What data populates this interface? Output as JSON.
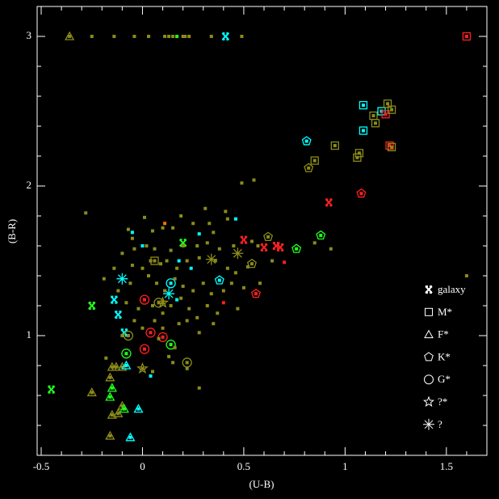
{
  "chart_data": {
    "type": "scatter",
    "x_label": "(U-B)",
    "y_label": "(B-R)",
    "xlim": [
      -0.52,
      1.7
    ],
    "ylim": [
      0.2,
      3.2
    ],
    "xticks": [
      -0.5,
      0,
      0.5,
      1,
      1.5
    ],
    "yticks": [
      1,
      2,
      3
    ],
    "xminorticks": [
      -0.4,
      -0.3,
      -0.2,
      -0.1,
      0.1,
      0.2,
      0.3,
      0.4,
      0.6,
      0.7,
      0.8,
      0.9,
      1.1,
      1.2,
      1.3,
      1.4,
      1.6
    ],
    "yminorticks": [
      0.4,
      0.6,
      0.8,
      1.2,
      1.4,
      1.6,
      1.8,
      2.2,
      2.4,
      2.6,
      2.8
    ],
    "legend": "lower right",
    "series": [
      {
        "name": "galaxy",
        "marker": "galaxy",
        "x": [
          -0.45,
          -0.25,
          -0.14,
          -0.12,
          -0.09,
          0.2,
          0.41,
          0.5,
          0.6,
          0.66,
          0.92,
          0.68
        ],
        "values": [
          0.64,
          1.2,
          1.24,
          1.14,
          1.02,
          1.62,
          3.0,
          1.64,
          1.59,
          1.6,
          1.89,
          1.59
        ],
        "colors": [
          "#20ff20",
          "#20ff20",
          "#00ffff",
          "#00ffff",
          "#00ffff",
          "#20ff20",
          "#00ffff",
          "#ff2020",
          "#ff2020",
          "#ff2020",
          "#ff2020",
          "#ff2020"
        ]
      },
      {
        "name": "M*",
        "marker": "square",
        "x": [
          1.09,
          1.09,
          1.15,
          1.14,
          1.18,
          1.2,
          1.21,
          1.23,
          1.22,
          1.23,
          1.06,
          1.07,
          0.95,
          0.85,
          0.06,
          1.6
        ],
        "values": [
          2.54,
          2.37,
          2.42,
          2.47,
          2.5,
          2.48,
          2.55,
          2.51,
          2.27,
          2.26,
          2.19,
          2.22,
          2.27,
          2.17,
          1.5,
          3.0
        ],
        "colors": [
          "#00ffff",
          "#00ffff",
          "#8b8b1a",
          "#8b8b1a",
          "#00ffff",
          "#ff2020",
          "#8b8b1a",
          "#8b8b1a",
          "#ff2020",
          "#8b8b1a",
          "#8b8b1a",
          "#8b8b1a",
          "#8b8b1a",
          "#8b8b1a",
          "#8b8b1a",
          "#ff2020"
        ]
      },
      {
        "name": "F*",
        "marker": "triangle",
        "x": [
          -0.36,
          -0.25,
          -0.16,
          -0.15,
          -0.13,
          -0.1,
          -0.08,
          -0.15,
          -0.16,
          -0.15,
          -0.12,
          -0.1,
          -0.09,
          -0.02,
          -0.16,
          -0.06
        ],
        "values": [
          3.0,
          0.62,
          0.72,
          0.79,
          0.79,
          0.79,
          0.8,
          0.65,
          0.59,
          0.47,
          0.48,
          0.53,
          0.51,
          0.51,
          0.33,
          0.32
        ],
        "colors": [
          "#8b8b1a",
          "#8b8b1a",
          "#8b8b1a",
          "#8b8b1a",
          "#8b8b1a",
          "#8b8b1a",
          "#00ffff",
          "#20ff20",
          "#20ff20",
          "#8b8b1a",
          "#8b8b1a",
          "#8b8b1a",
          "#20ff20",
          "#00ffff",
          "#8b8b1a",
          "#00ffff"
        ]
      },
      {
        "name": "K*",
        "marker": "pentagon",
        "x": [
          0.81,
          0.82,
          1.08,
          0.62,
          0.88,
          0.76,
          0.54,
          0.56,
          0.38
        ],
        "values": [
          2.3,
          2.12,
          1.95,
          1.66,
          1.67,
          1.58,
          1.48,
          1.28,
          1.37
        ],
        "colors": [
          "#00ffff",
          "#8b8b1a",
          "#ff2020",
          "#8b8b1a",
          "#20ff20",
          "#20ff20",
          "#8b8b1a",
          "#ff2020",
          "#00ffff"
        ]
      },
      {
        "name": "G*",
        "marker": "circle",
        "x": [
          0.01,
          -0.07,
          0.04,
          0.1,
          0.01,
          -0.08,
          0.14,
          0.22,
          0.08,
          0.14
        ],
        "values": [
          1.24,
          1.0,
          1.02,
          0.99,
          0.91,
          0.88,
          0.94,
          0.82,
          1.22,
          1.35
        ],
        "colors": [
          "#ff2020",
          "#8b8b1a",
          "#ff2020",
          "#ff2020",
          "#ff2020",
          "#20ff20",
          "#20ff20",
          "#8b8b1a",
          "#8b8b1a",
          "#00ffff"
        ]
      },
      {
        "name": "?*",
        "marker": "star",
        "x": [
          0.0,
          0.1
        ],
        "values": [
          0.78,
          1.22
        ],
        "colors": [
          "#8b8b1a",
          "#8b8b1a"
        ]
      },
      {
        "name": "?",
        "marker": "asterisk",
        "x": [
          -0.1,
          0.13,
          0.34,
          0.47
        ],
        "values": [
          1.38,
          1.28,
          1.51,
          1.55
        ],
        "colors": [
          "#00ffff",
          "#00ffff",
          "#8b8b1a",
          "#8b8b1a"
        ]
      },
      {
        "marker": "dot",
        "x": [
          -0.25,
          -0.14,
          -0.04,
          0.03,
          0.11,
          0.13,
          0.15,
          0.2,
          0.21,
          0.23,
          0.34,
          0.49,
          0.17,
          -0.28,
          0.01,
          0.19,
          0.41,
          0.49,
          0.55,
          -0.07,
          -0.05,
          0.05,
          0.1,
          0.15,
          0.25,
          0.33,
          0.42,
          0.35,
          -0.1,
          -0.04,
          0.02,
          0.06,
          0.14,
          0.2,
          0.27,
          0.32,
          0.38,
          0.45,
          0.54,
          -0.19,
          -0.14,
          -0.05,
          0.0,
          0.04,
          0.09,
          0.12,
          0.17,
          0.22,
          0.28,
          0.36,
          0.42,
          0.46,
          0.52,
          -0.12,
          -0.06,
          0.03,
          0.07,
          0.11,
          0.16,
          0.2,
          0.25,
          0.3,
          0.34,
          0.4,
          0.44,
          0.5,
          0.58,
          -0.08,
          -0.02,
          0.05,
          0.1,
          0.14,
          0.19,
          0.23,
          0.27,
          0.32,
          0.37,
          0.47,
          0.22,
          0.1,
          0.0,
          -0.04,
          0.06,
          0.18,
          0.35,
          0.28,
          -0.1,
          0.08,
          0.16,
          0.13,
          0.15,
          0.22,
          0.05,
          -0.18,
          0.28,
          0.85,
          0.93,
          1.6,
          0.64,
          0.57,
          0.31,
          0.46,
          -0.05,
          0.0,
          0.11,
          0.7,
          0.28,
          0.24,
          0.18,
          0.4,
          0.04,
          0.17
        ],
        "values": [
          3.0,
          3.0,
          3.0,
          3.0,
          3.0,
          3.0,
          3.0,
          3.0,
          3.0,
          3.0,
          3.0,
          3.0,
          3.0,
          1.82,
          1.79,
          1.8,
          1.83,
          2.02,
          2.04,
          1.71,
          1.65,
          1.7,
          1.72,
          1.72,
          1.75,
          1.75,
          1.78,
          1.69,
          1.55,
          1.58,
          1.6,
          1.58,
          1.57,
          1.6,
          1.6,
          1.62,
          1.58,
          1.6,
          1.63,
          1.38,
          1.45,
          1.47,
          1.45,
          1.5,
          1.48,
          1.5,
          1.45,
          1.5,
          1.52,
          1.5,
          1.45,
          1.42,
          1.46,
          1.3,
          1.35,
          1.4,
          1.35,
          1.3,
          1.38,
          1.33,
          1.3,
          1.35,
          1.28,
          1.3,
          1.35,
          1.32,
          1.35,
          1.22,
          1.18,
          1.2,
          1.15,
          1.2,
          1.25,
          1.18,
          1.12,
          1.2,
          1.15,
          1.18,
          1.1,
          1.05,
          1.05,
          1.1,
          1.1,
          1.08,
          1.08,
          1.02,
          1.0,
          0.98,
          0.92,
          0.86,
          0.82,
          0.78,
          0.76,
          0.85,
          0.65,
          1.62,
          1.58,
          1.4,
          1.5,
          1.6,
          1.85,
          1.78,
          1.69,
          1.6,
          1.75,
          1.49,
          1.68,
          1.45,
          1.5,
          1.22,
          0.73,
          1.24
        ],
        "colors": [
          "#8b8b1a",
          "#8b8b1a",
          "#8b8b1a",
          "#8b8b1a",
          "#8b8b1a",
          "#8b8b1a",
          "#8b8b1a",
          "#8b8b1a",
          "#8b8b1a",
          "#8b8b1a",
          "#8b8b1a",
          "#8b8b1a",
          "#20ff20",
          "#8b8b1a",
          "#8b8b1a",
          "#8b8b1a",
          "#8b8b1a",
          "#8b8b1a",
          "#8b8b1a",
          "#8b8b1a",
          "#8b8b1a",
          "#8b8b1a",
          "#8b8b1a",
          "#8b8b1a",
          "#8b8b1a",
          "#8b8b1a",
          "#8b8b1a",
          "#8b8b1a",
          "#8b8b1a",
          "#8b8b1a",
          "#8b8b1a",
          "#8b8b1a",
          "#8b8b1a",
          "#8b8b1a",
          "#8b8b1a",
          "#8b8b1a",
          "#8b8b1a",
          "#8b8b1a",
          "#8b8b1a",
          "#8b8b1a",
          "#8b8b1a",
          "#8b8b1a",
          "#8b8b1a",
          "#8b8b1a",
          "#8b8b1a",
          "#8b8b1a",
          "#8b8b1a",
          "#8b8b1a",
          "#8b8b1a",
          "#8b8b1a",
          "#8b8b1a",
          "#8b8b1a",
          "#8b8b1a",
          "#8b8b1a",
          "#8b8b1a",
          "#8b8b1a",
          "#8b8b1a",
          "#8b8b1a",
          "#8b8b1a",
          "#8b8b1a",
          "#8b8b1a",
          "#8b8b1a",
          "#8b8b1a",
          "#8b8b1a",
          "#8b8b1a",
          "#8b8b1a",
          "#8b8b1a",
          "#8b8b1a",
          "#8b8b1a",
          "#8b8b1a",
          "#8b8b1a",
          "#8b8b1a",
          "#8b8b1a",
          "#8b8b1a",
          "#8b8b1a",
          "#8b8b1a",
          "#8b8b1a",
          "#8b8b1a",
          "#8b8b1a",
          "#8b8b1a",
          "#8b8b1a",
          "#8b8b1a",
          "#8b8b1a",
          "#8b8b1a",
          "#8b8b1a",
          "#8b8b1a",
          "#8b8b1a",
          "#8b8b1a",
          "#8b8b1a",
          "#8b8b1a",
          "#8b8b1a",
          "#8b8b1a",
          "#8b8b1a",
          "#8b8b1a",
          "#8b8b1a",
          "#8b8b1a",
          "#8b8b1a",
          "#8b8b1a",
          "#8b8b1a",
          "#8b8b1a",
          "#8b8b1a",
          "#00ffff",
          "#00ffff",
          "#00ffff",
          "#ff7000",
          "#ff2020",
          "#00ffff",
          "#00ffff",
          "#00ffff",
          "#ff2020",
          "#00ffff",
          "#00ffff"
        ]
      }
    ]
  }
}
